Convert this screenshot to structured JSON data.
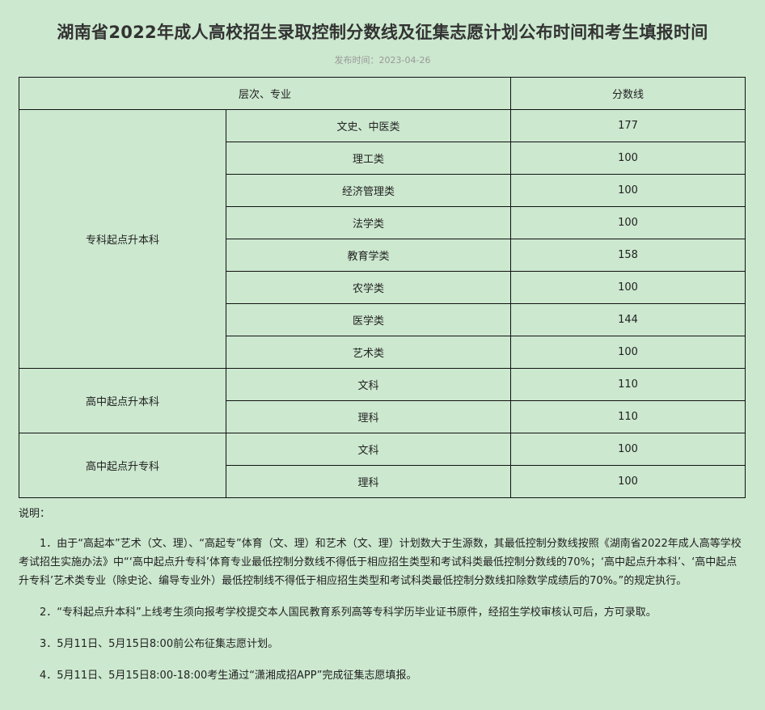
{
  "title": "湖南省2022年成人高校招生录取控制分数线及征集志愿计划公布时间和考生填报时间",
  "publish_date": "发布时间：2023-04-26",
  "table": {
    "headers": [
      "层次、专业",
      "分数线"
    ],
    "groups": [
      {
        "level": "专科起点升本科",
        "rows": [
          {
            "major": "文史、中医类",
            "score": "177"
          },
          {
            "major": "理工类",
            "score": "100"
          },
          {
            "major": "经济管理类",
            "score": "100"
          },
          {
            "major": "法学类",
            "score": "100"
          },
          {
            "major": "教育学类",
            "score": "158"
          },
          {
            "major": "农学类",
            "score": "100"
          },
          {
            "major": "医学类",
            "score": "144"
          },
          {
            "major": "艺术类",
            "score": "100"
          }
        ]
      },
      {
        "level": "高中起点升本科",
        "rows": [
          {
            "major": "文科",
            "score": "110"
          },
          {
            "major": "理科",
            "score": "110"
          }
        ]
      },
      {
        "level": "高中起点升专科",
        "rows": [
          {
            "major": "文科",
            "score": "100"
          },
          {
            "major": "理科",
            "score": "100"
          }
        ]
      }
    ]
  },
  "notes": {
    "label": "说明：",
    "items": [
      "1．由于“高起本”艺术（文、理）、“高起专”体育（文、理）和艺术（文、理）计划数大于生源数，其最低控制分数线按照《湖南省2022年成人高等学校考试招生实施办法》中“‘高中起点升专科’体育专业最低控制分数线不得低于相应招生类型和考试科类最低控制分数线的70%；‘高中起点升本科’、‘高中起点升专科’艺术类专业（除史论、编导专业外）最低控制线不得低于相应招生类型和考试科类最低控制分数线扣除数学成绩后的70%。”的规定执行。",
      "2．“专科起点升本科”上线考生须向报考学校提交本人国民教育系列高等专科学历毕业证书原件，经招生学校审核认可后，方可录取。",
      "3．5月11日、5月15日8:00前公布征集志愿计划。",
      "4．5月11日、5月15日8:00-18:00考生通过“潇湘成招APP”完成征集志愿填报。"
    ]
  }
}
